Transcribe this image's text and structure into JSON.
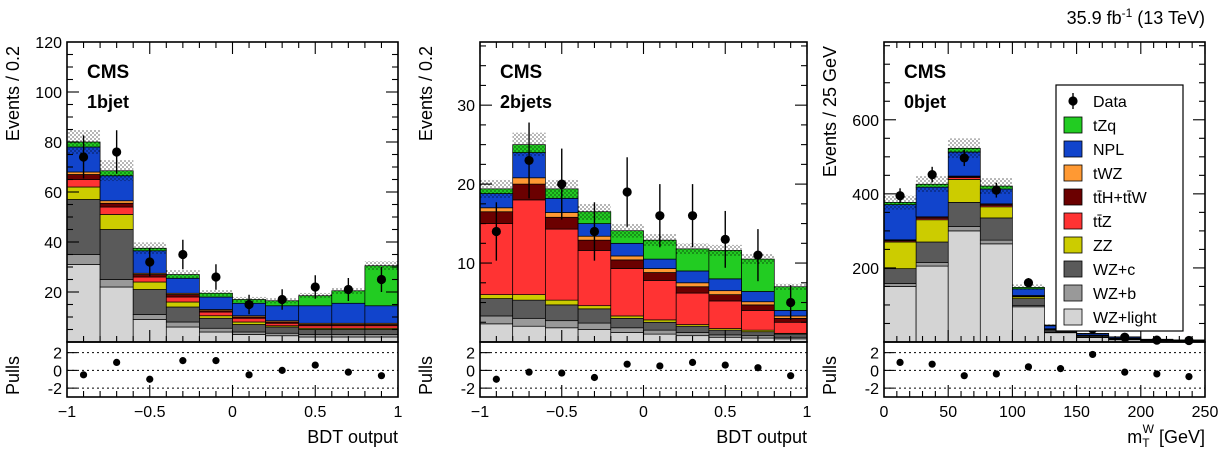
{
  "lumi": {
    "value": "35.9 fb",
    "exp": "-1",
    "energy": " (13 TeV)"
  },
  "colors": {
    "tZq": "#22cc22",
    "NPL": "#1144cc",
    "tWZ": "#ff9933",
    "ttH_ttW": "#6b0000",
    "ttZ": "#ff3333",
    "ZZ": "#cccc00",
    "WZ_c": "#5a5a5a",
    "WZ_b": "#999999",
    "WZ_light": "#d4d4d4"
  },
  "legend": [
    {
      "key": "Data",
      "label": "Data"
    },
    {
      "key": "tZq",
      "label": "tZq"
    },
    {
      "key": "NPL",
      "label": "NPL"
    },
    {
      "key": "tWZ",
      "label": "tWZ"
    },
    {
      "key": "ttH_ttW",
      "label": "tt̄H+tt̄W"
    },
    {
      "key": "ttZ",
      "label": "tt̄Z"
    },
    {
      "key": "ZZ",
      "label": "ZZ"
    },
    {
      "key": "WZ_c",
      "label": "WZ+c"
    },
    {
      "key": "WZ_b",
      "label": "WZ+b"
    },
    {
      "key": "WZ_light",
      "label": "WZ+light"
    }
  ],
  "chart_data": [
    {
      "type": "bar",
      "stacked": true,
      "cms_label": "CMS",
      "category_label": "1bjet",
      "xlabel": "BDT output",
      "ylabel": "Events / 0.2",
      "pulls_label": "Pulls",
      "xlim": [
        -1,
        1
      ],
      "ylim": [
        0,
        120
      ],
      "x_ticks": [
        -1,
        -0.5,
        0,
        0.5,
        1
      ],
      "x_tick_labels": [
        "−1",
        "−0.5",
        "0",
        "0.5",
        "1"
      ],
      "y_ticks": [
        20,
        40,
        60,
        80,
        100,
        120
      ],
      "pull_ticks": [
        -2,
        0,
        2
      ],
      "bin_edges": [
        -1,
        -0.8,
        -0.6,
        -0.4,
        -0.2,
        0,
        0.2,
        0.4,
        0.6,
        0.8,
        1
      ],
      "series": [
        {
          "key": "WZ_light",
          "values": [
            31,
            22,
            9,
            6,
            4,
            3,
            2.5,
            2,
            2,
            2
          ]
        },
        {
          "key": "WZ_b",
          "values": [
            4,
            3,
            2,
            2,
            1.5,
            1,
            1,
            1,
            1,
            1
          ]
        },
        {
          "key": "WZ_c",
          "values": [
            22,
            20,
            10,
            6,
            4,
            3,
            2.5,
            2,
            2,
            2
          ]
        },
        {
          "key": "ZZ",
          "values": [
            5,
            6,
            3,
            2,
            1,
            1,
            0.5,
            0.5,
            0.5,
            0.5
          ]
        },
        {
          "key": "ttZ",
          "values": [
            3,
            3,
            2,
            2,
            1.5,
            1.5,
            1,
            1,
            1,
            1
          ]
        },
        {
          "key": "ttH_ttW",
          "values": [
            2,
            1.5,
            1,
            1,
            0.5,
            0.5,
            0.5,
            0.5,
            0.5,
            0.5
          ]
        },
        {
          "key": "tWZ",
          "values": [
            1,
            1,
            0.5,
            0.5,
            0.5,
            0.5,
            0.5,
            0.5,
            0.5,
            0.5
          ]
        },
        {
          "key": "NPL",
          "values": [
            10,
            10,
            9,
            6,
            5,
            5,
            6,
            7,
            8,
            7
          ]
        },
        {
          "key": "tZq",
          "values": [
            2,
            2,
            1,
            1.5,
            1.5,
            1.5,
            2,
            4,
            5,
            16
          ]
        }
      ],
      "data_points": [
        {
          "y": 74,
          "err": 8.6
        },
        {
          "y": 76,
          "err": 8.7
        },
        {
          "y": 32,
          "err": 5.7
        },
        {
          "y": 35,
          "err": 5.9
        },
        {
          "y": 26,
          "err": 5.1
        },
        {
          "y": 15,
          "err": 3.9
        },
        {
          "y": 17,
          "err": 4.1
        },
        {
          "y": 22,
          "err": 4.7
        },
        {
          "y": 21,
          "err": 4.6
        },
        {
          "y": 25,
          "err": 5.0
        }
      ],
      "uncertainty": 0.06,
      "pulls": [
        -0.5,
        0.9,
        -1.0,
        1.1,
        1.1,
        -0.5,
        0,
        0.6,
        -0.2,
        -0.6
      ]
    },
    {
      "type": "bar",
      "stacked": true,
      "cms_label": "CMS",
      "category_label": "2bjets",
      "xlabel": "BDT output",
      "ylabel": "Events / 0.2",
      "pulls_label": "Pulls",
      "xlim": [
        -1,
        1
      ],
      "ylim": [
        0,
        38
      ],
      "x_ticks": [
        -1,
        -0.5,
        0,
        0.5,
        1
      ],
      "x_tick_labels": [
        "−1",
        "−0.5",
        "0",
        "0.5",
        "1"
      ],
      "y_ticks": [
        10,
        20,
        30
      ],
      "pull_ticks": [
        -2,
        0,
        2
      ],
      "bin_edges": [
        -1,
        -0.8,
        -0.6,
        -0.4,
        -0.2,
        0,
        0.2,
        0.4,
        0.6,
        0.8,
        1
      ],
      "series": [
        {
          "key": "WZ_light",
          "values": [
            2.3,
            2.0,
            1.8,
            1.6,
            1.2,
            1.0,
            0.8,
            0.6,
            0.5,
            0.4
          ]
        },
        {
          "key": "WZ_b",
          "values": [
            1.0,
            1.0,
            0.9,
            0.8,
            0.6,
            0.5,
            0.4,
            0.3,
            0.3,
            0.2
          ]
        },
        {
          "key": "WZ_c",
          "values": [
            2.2,
            2.3,
            2.0,
            1.8,
            1.2,
            1.0,
            0.8,
            0.6,
            0.5,
            0.4
          ]
        },
        {
          "key": "ZZ",
          "values": [
            0.5,
            0.7,
            0.6,
            0.4,
            0.3,
            0.3,
            0.2,
            0.2,
            0.2,
            0.1
          ]
        },
        {
          "key": "ttZ",
          "values": [
            9,
            12,
            9,
            7,
            6,
            5,
            4,
            3.5,
            2.5,
            1.4
          ]
        },
        {
          "key": "ttH_ttW",
          "values": [
            1.5,
            2.0,
            1.5,
            1.3,
            1.1,
            1.0,
            0.8,
            0.8,
            0.7,
            0.5
          ]
        },
        {
          "key": "tWZ",
          "values": [
            0.5,
            0.8,
            0.6,
            0.5,
            0.5,
            0.5,
            0.5,
            0.5,
            0.4,
            0.3
          ]
        },
        {
          "key": "NPL",
          "values": [
            1.8,
            3.2,
            1.8,
            1.6,
            1.6,
            1.2,
            1.5,
            1.5,
            1.3,
            0.7
          ]
        },
        {
          "key": "tZq",
          "values": [
            0.6,
            1.0,
            1.2,
            1.5,
            1.6,
            2.4,
            2.8,
            3.6,
            4.1,
            3.0
          ]
        }
      ],
      "data_points": [
        {
          "y": 14,
          "err": 3.7
        },
        {
          "y": 23,
          "err": 4.8
        },
        {
          "y": 20,
          "err": 4.5
        },
        {
          "y": 14,
          "err": 3.7
        },
        {
          "y": 19,
          "err": 4.4
        },
        {
          "y": 16,
          "err": 4.0
        },
        {
          "y": 16,
          "err": 4.0
        },
        {
          "y": 13,
          "err": 3.6
        },
        {
          "y": 11,
          "err": 3.3
        },
        {
          "y": 5,
          "err": 2.2
        }
      ],
      "uncertainty": 0.06,
      "pulls": [
        -1.0,
        -0.2,
        -0.3,
        -0.8,
        0.7,
        0.5,
        0.9,
        0.6,
        0.3,
        -0.6
      ]
    },
    {
      "type": "bar",
      "stacked": true,
      "cms_label": "CMS",
      "category_label": "0bjet",
      "xlabel": "m",
      "xlabel_sub": "T",
      "xlabel_sup": "W",
      "xlabel_unit": " [GeV]",
      "ylabel": "Events / 25 GeV",
      "pulls_label": "Pulls",
      "xlim": [
        0,
        250
      ],
      "ylim": [
        0,
        810
      ],
      "x_ticks": [
        0,
        50,
        100,
        150,
        200,
        250
      ],
      "x_tick_labels": [
        "0",
        "50",
        "100",
        "150",
        "200",
        "250"
      ],
      "y_ticks": [
        200,
        400,
        600
      ],
      "pull_ticks": [
        -2,
        0,
        2
      ],
      "bin_edges": [
        0,
        25,
        50,
        75,
        100,
        125,
        150,
        175,
        200,
        225,
        250
      ],
      "series": [
        {
          "key": "WZ_light",
          "values": [
            150,
            205,
            300,
            265,
            95,
            25,
            12,
            6,
            3,
            2
          ]
        },
        {
          "key": "WZ_b",
          "values": [
            8,
            10,
            12,
            10,
            4,
            2,
            1,
            0.5,
            0.5,
            0.3
          ]
        },
        {
          "key": "WZ_c",
          "values": [
            40,
            55,
            65,
            60,
            18,
            5,
            3,
            2,
            1,
            1
          ]
        },
        {
          "key": "ZZ",
          "values": [
            72,
            60,
            62,
            30,
            5,
            2,
            1,
            1,
            0.5,
            0.3
          ]
        },
        {
          "key": "ttZ",
          "values": [
            3,
            4,
            5,
            4,
            2,
            1,
            0.5,
            0.5,
            0.3,
            0.2
          ]
        },
        {
          "key": "ttH_ttW",
          "values": [
            2,
            3,
            3,
            3,
            1,
            0.5,
            0.5,
            0.3,
            0.2,
            0.2
          ]
        },
        {
          "key": "tWZ",
          "values": [
            1,
            1,
            1,
            1,
            0.5,
            0.3,
            0.2,
            0.2,
            0.1,
            0.1
          ]
        },
        {
          "key": "NPL",
          "values": [
            95,
            80,
            65,
            40,
            18,
            8,
            4,
            3,
            1.5,
            1.2
          ]
        },
        {
          "key": "tZq",
          "values": [
            6,
            8,
            10,
            8,
            4,
            2,
            1,
            0.5,
            0.4,
            0.3
          ]
        }
      ],
      "data_points": [
        {
          "y": 395,
          "err": 20
        },
        {
          "y": 452,
          "err": 21
        },
        {
          "y": 497,
          "err": 22
        },
        {
          "y": 410,
          "err": 20
        },
        {
          "y": 160,
          "err": 12.6
        },
        {
          "y": 55,
          "err": 7.4
        },
        {
          "y": 35,
          "err": 5.9
        },
        {
          "y": 13,
          "err": 3.6
        },
        {
          "y": 5,
          "err": 2.2
        },
        {
          "y": 4,
          "err": 2
        }
      ],
      "uncertainty": 0.05,
      "pulls": [
        0.9,
        0.7,
        -0.6,
        -0.4,
        0.4,
        0.2,
        1.8,
        -0.2,
        -0.4,
        -0.7
      ]
    }
  ]
}
